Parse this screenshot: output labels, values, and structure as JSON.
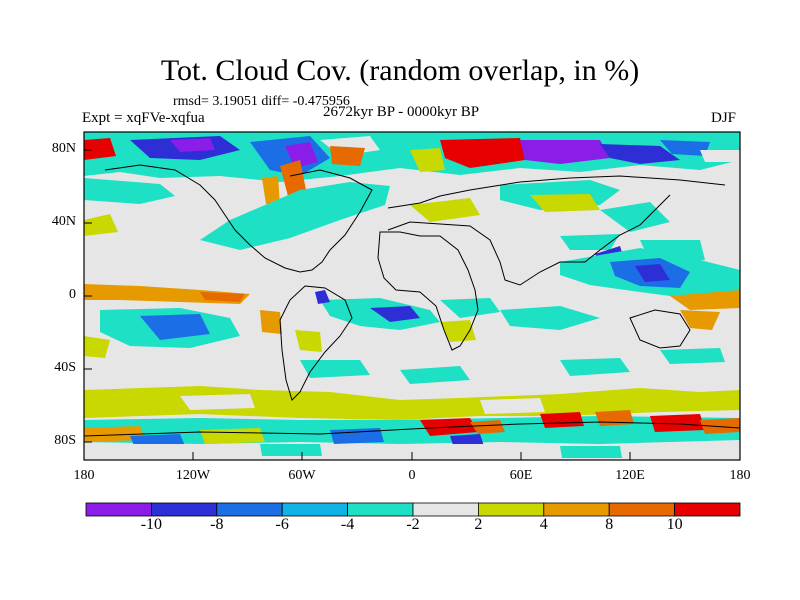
{
  "map": {
    "title": "Tot. Cloud Cov. (random overlap, in %)",
    "stats": "rmsd= 3.19051 diff= -0.475956",
    "experiment": "Expt = xqFVe-xqfua",
    "period": "2672kyr BP - 0000kyr BP",
    "season": "DJF",
    "projection": "cylindrical equidistant",
    "lat_labels": [
      "80N",
      "40N",
      "0",
      "40S",
      "80S"
    ],
    "lon_labels": [
      "180",
      "120W",
      "60W",
      "0",
      "60E",
      "120E",
      "180"
    ]
  },
  "colorbar": {
    "labels": [
      "-10",
      "-8",
      "-6",
      "-4",
      "-2",
      "2",
      "4",
      "8",
      "10"
    ],
    "colors": [
      "#8a1de8",
      "#2e2ed6",
      "#1c6ee6",
      "#0fb3e6",
      "#1de0c4",
      "#e6e6e6",
      "#c8d800",
      "#e69a00",
      "#e66a00",
      "#e60000"
    ]
  }
}
